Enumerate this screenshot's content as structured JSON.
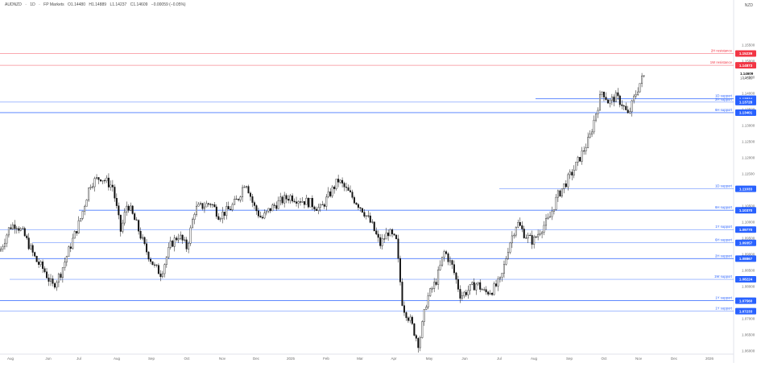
{
  "header": {
    "symbol": "AUDNZD",
    "timeframe": "1D",
    "source": "FP Markets",
    "open": "O1.14480",
    "high": "H1.14889",
    "low": "L1.14237",
    "close": "C1.14609",
    "change": "−0.00059 (−0.05%)"
  },
  "currency": "NZD",
  "colors": {
    "support": "#2962ff",
    "resistance": "#f23645",
    "candle": "#111111",
    "current_price_bg": "#ffffff"
  },
  "chart_data": {
    "type": "candlestick",
    "instrument": "AUDNZD",
    "timeframe": "1D",
    "x_axis_labels": [
      "Aug",
      "Jun",
      "Jul",
      "Aug",
      "Sep",
      "Oct",
      "Nov",
      "Dec",
      "2025",
      "Feb",
      "Mar",
      "Apr",
      "May",
      "Jun",
      "Jul",
      "Aug",
      "Sep",
      "Oct",
      "Nov",
      "Dec",
      "2026"
    ],
    "y_axis_ticks": [
      "1.15500",
      "1.15000",
      "1.14500",
      "1.14000",
      "1.13500",
      "1.13000",
      "1.12500",
      "1.12000",
      "1.11500",
      "1.11000",
      "1.10500",
      "1.10000",
      "1.09500",
      "1.09000",
      "1.08500",
      "1.08000",
      "1.07500",
      "1.07000",
      "1.06500",
      "1.06000"
    ],
    "ylim": [
      1.0595,
      1.166
    ],
    "current_price": "1.14609",
    "current_price_sub": "1.14589",
    "price_path": [
      [
        0,
        1.091
      ],
      [
        12,
        1.0985
      ],
      [
        20,
        1.0995
      ],
      [
        30,
        1.096
      ],
      [
        45,
        1.088
      ],
      [
        55,
        1.085
      ],
      [
        65,
        1.08
      ],
      [
        75,
        1.084
      ],
      [
        88,
        1.093
      ],
      [
        100,
        1.101
      ],
      [
        112,
        1.112
      ],
      [
        125,
        1.114
      ],
      [
        140,
        1.111
      ],
      [
        150,
        1.097
      ],
      [
        158,
        1.106
      ],
      [
        170,
        1.099
      ],
      [
        180,
        1.092
      ],
      [
        192,
        1.086
      ],
      [
        200,
        1.084
      ],
      [
        212,
        1.093
      ],
      [
        222,
        1.096
      ],
      [
        232,
        1.092
      ],
      [
        242,
        1.104
      ],
      [
        252,
        1.105
      ],
      [
        262,
        1.106
      ],
      [
        272,
        1.102
      ],
      [
        285,
        1.104
      ],
      [
        295,
        1.107
      ],
      [
        305,
        1.113
      ],
      [
        315,
        1.105
      ],
      [
        325,
        1.101
      ],
      [
        335,
        1.104
      ],
      [
        345,
        1.106
      ],
      [
        360,
        1.108
      ],
      [
        372,
        1.107
      ],
      [
        385,
        1.106
      ],
      [
        398,
        1.104
      ],
      [
        410,
        1.109
      ],
      [
        420,
        1.113
      ],
      [
        430,
        1.11
      ],
      [
        440,
        1.107
      ],
      [
        450,
        1.104
      ],
      [
        462,
        1.099
      ],
      [
        472,
        1.093
      ],
      [
        482,
        1.097
      ],
      [
        492,
        1.094
      ],
      [
        500,
        1.074
      ],
      [
        510,
        1.069
      ],
      [
        520,
        1.062
      ],
      [
        530,
        1.076
      ],
      [
        542,
        1.082
      ],
      [
        552,
        1.091
      ],
      [
        562,
        1.086
      ],
      [
        572,
        1.077
      ],
      [
        582,
        1.079
      ],
      [
        592,
        1.081
      ],
      [
        602,
        1.078
      ],
      [
        612,
        1.079
      ],
      [
        622,
        1.082
      ],
      [
        632,
        1.093
      ],
      [
        642,
        1.1
      ],
      [
        652,
        1.096
      ],
      [
        662,
        1.094
      ],
      [
        672,
        1.098
      ],
      [
        682,
        1.101
      ],
      [
        692,
        1.108
      ],
      [
        702,
        1.112
      ],
      [
        712,
        1.116
      ],
      [
        722,
        1.121
      ],
      [
        732,
        1.126
      ],
      [
        740,
        1.134
      ],
      [
        748,
        1.141
      ],
      [
        756,
        1.137
      ],
      [
        764,
        1.139
      ],
      [
        772,
        1.137
      ],
      [
        780,
        1.133
      ],
      [
        788,
        1.139
      ],
      [
        796,
        1.144
      ],
      [
        802,
        1.1461
      ]
    ],
    "levels": [
      {
        "type": "resistance",
        "label": "2H resistance",
        "price": "1.15239",
        "value": 1.15239
      },
      {
        "type": "resistance",
        "label": "1W resistance",
        "price": "1.14873",
        "value": 1.14873
      },
      {
        "type": "support",
        "label": "1D support",
        "price": "1.13834",
        "value": 1.13834
      },
      {
        "type": "support",
        "label": "2H support",
        "price": "1.13728",
        "value": 1.13728
      },
      {
        "type": "support",
        "label": "6H support",
        "price": "1.13401",
        "value": 1.13401
      },
      {
        "type": "support",
        "label": "1D support",
        "price": "1.11033",
        "value": 1.11033
      },
      {
        "type": "support",
        "label": "6H support",
        "price": "1.10370",
        "value": 1.1037
      },
      {
        "type": "support",
        "label": "1Y support",
        "price": "1.09770",
        "value": 1.0977
      },
      {
        "type": "support",
        "label": "6H support",
        "price": "1.09357",
        "value": 1.09357
      },
      {
        "type": "support",
        "label": "2H support",
        "price": "1.08867",
        "value": 1.08867
      },
      {
        "type": "support",
        "label": "1W support",
        "price": "1.08224",
        "value": 1.08224
      },
      {
        "type": "support",
        "label": "1Y support",
        "price": "1.07560",
        "value": 1.0756
      },
      {
        "type": "support",
        "label": "1Y support",
        "price": "1.07233",
        "value": 1.07233
      }
    ]
  }
}
